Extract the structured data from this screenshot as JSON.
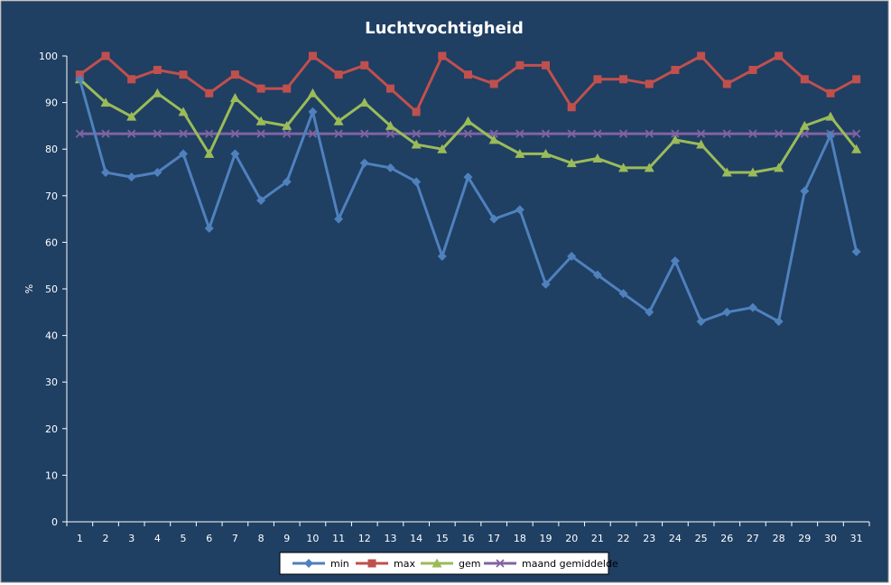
{
  "chart_data": {
    "type": "line",
    "title": "Luchtvochtigheid",
    "xlabel": "",
    "ylabel": "%",
    "ylim": [
      0,
      100
    ],
    "yticks": [
      0,
      10,
      20,
      30,
      40,
      50,
      60,
      70,
      80,
      90,
      100
    ],
    "categories": [
      "1",
      "2",
      "3",
      "4",
      "5",
      "6",
      "7",
      "8",
      "9",
      "10",
      "11",
      "12",
      "13",
      "14",
      "15",
      "16",
      "17",
      "18",
      "19",
      "20",
      "21",
      "22",
      "23",
      "24",
      "25",
      "26",
      "27",
      "28",
      "29",
      "30",
      "31"
    ],
    "grid": false,
    "legend_position": "bottom",
    "series": [
      {
        "name": "min",
        "color": "#4f81bd",
        "marker": "diamond",
        "values": [
          95,
          75,
          74,
          75,
          79,
          63,
          79,
          69,
          73,
          88,
          65,
          77,
          76,
          73,
          57,
          74,
          65,
          67,
          51,
          57,
          53,
          49,
          45,
          56,
          43,
          45,
          46,
          43,
          71,
          83,
          58
        ]
      },
      {
        "name": "max",
        "color": "#c0504d",
        "marker": "square",
        "values": [
          96,
          100,
          95,
          97,
          96,
          92,
          96,
          93,
          93,
          100,
          96,
          98,
          93,
          88,
          100,
          96,
          94,
          98,
          98,
          89,
          95,
          95,
          94,
          97,
          100,
          94,
          97,
          100,
          95,
          92,
          95
        ]
      },
      {
        "name": "gem",
        "color": "#9bbb59",
        "marker": "triangle",
        "values": [
          95,
          90,
          87,
          92,
          88,
          79,
          91,
          86,
          85,
          92,
          86,
          90,
          85,
          81,
          80,
          86,
          82,
          79,
          79,
          77,
          78,
          76,
          76,
          82,
          81,
          75,
          75,
          76,
          85,
          87,
          80
        ]
      },
      {
        "name": "maand gemiddelde",
        "color": "#8064a2",
        "marker": "x",
        "values": [
          83.3,
          83.3,
          83.3,
          83.3,
          83.3,
          83.3,
          83.3,
          83.3,
          83.3,
          83.3,
          83.3,
          83.3,
          83.3,
          83.3,
          83.3,
          83.3,
          83.3,
          83.3,
          83.3,
          83.3,
          83.3,
          83.3,
          83.3,
          83.3,
          83.3,
          83.3,
          83.3,
          83.3,
          83.3,
          83.3,
          83.3
        ]
      }
    ]
  }
}
